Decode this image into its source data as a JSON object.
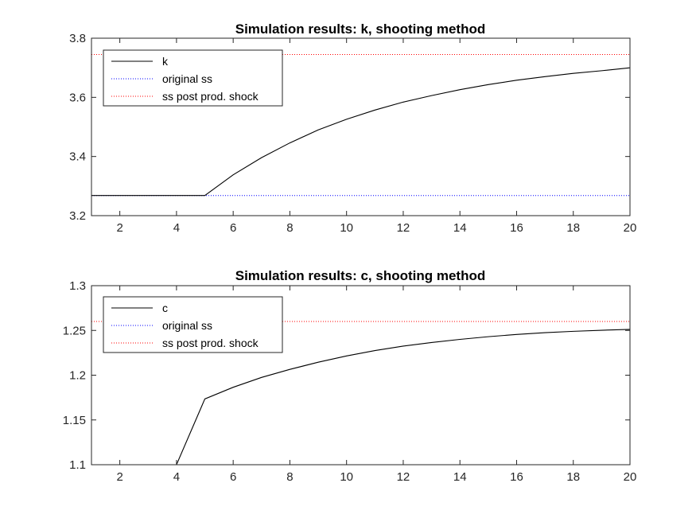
{
  "chart_data": [
    {
      "type": "line",
      "title": "Simulation results: k, shooting method",
      "xlabel": "",
      "ylabel": "",
      "xlim": [
        1,
        20
      ],
      "ylim": [
        3.2,
        3.8
      ],
      "xticks": [
        2,
        4,
        6,
        8,
        10,
        12,
        14,
        16,
        18,
        20
      ],
      "xtick_labels": [
        "2",
        "4",
        "6",
        "8",
        "10",
        "12",
        "14",
        "16",
        "18",
        "20"
      ],
      "yticks": [
        3.2,
        3.4,
        3.6,
        3.8
      ],
      "ytick_labels": [
        "3.2",
        "3.4",
        "3.6",
        "3.8"
      ],
      "grid": false,
      "legend_position": "top-left",
      "x": [
        1,
        2,
        3,
        4,
        5,
        6,
        7,
        8,
        9,
        10,
        11,
        12,
        13,
        14,
        15,
        16,
        17,
        18,
        19,
        20
      ],
      "series": [
        {
          "name": "k",
          "color": "#000000",
          "style": "solid",
          "values": [
            3.268,
            3.268,
            3.268,
            3.268,
            3.268,
            3.338,
            3.396,
            3.446,
            3.49,
            3.526,
            3.557,
            3.584,
            3.606,
            3.626,
            3.643,
            3.658,
            3.67,
            3.681,
            3.69,
            3.7
          ]
        },
        {
          "name": "original ss",
          "color": "#0000ff",
          "style": "dotted",
          "values": [
            3.268,
            3.268,
            3.268,
            3.268,
            3.268,
            3.268,
            3.268,
            3.268,
            3.268,
            3.268,
            3.268,
            3.268,
            3.268,
            3.268,
            3.268,
            3.268,
            3.268,
            3.268,
            3.268,
            3.268
          ]
        },
        {
          "name": "ss post prod. shock",
          "color": "#ff0000",
          "style": "dotted",
          "values": [
            3.745,
            3.745,
            3.745,
            3.745,
            3.745,
            3.745,
            3.745,
            3.745,
            3.745,
            3.745,
            3.745,
            3.745,
            3.745,
            3.745,
            3.745,
            3.745,
            3.745,
            3.745,
            3.745,
            3.745
          ]
        }
      ]
    },
    {
      "type": "line",
      "title": "Simulation results: c, shooting method",
      "xlabel": "",
      "ylabel": "",
      "xlim": [
        1,
        20
      ],
      "ylim": [
        1.1,
        1.3
      ],
      "xticks": [
        2,
        4,
        6,
        8,
        10,
        12,
        14,
        16,
        18,
        20
      ],
      "xtick_labels": [
        "2",
        "4",
        "6",
        "8",
        "10",
        "12",
        "14",
        "16",
        "18",
        "20"
      ],
      "yticks": [
        1.1,
        1.15,
        1.2,
        1.25,
        1.3
      ],
      "ytick_labels": [
        "1.1",
        "1.15",
        "1.2",
        "1.25",
        "1.3"
      ],
      "grid": false,
      "legend_position": "top-left",
      "x": [
        1,
        2,
        3,
        4,
        5,
        6,
        7,
        8,
        9,
        10,
        11,
        12,
        13,
        14,
        15,
        16,
        17,
        18,
        19,
        20
      ],
      "series": [
        {
          "name": "c",
          "color": "#000000",
          "style": "solid",
          "values": [
            1.1,
            1.1,
            1.1,
            1.1,
            1.1735,
            1.1865,
            1.1975,
            1.2065,
            1.2145,
            1.2215,
            1.2275,
            1.2325,
            1.2365,
            1.24,
            1.243,
            1.2455,
            1.2475,
            1.249,
            1.2502,
            1.2512
          ]
        },
        {
          "name": "original ss",
          "color": "#0000ff",
          "style": "dotted",
          "values": [
            1.1,
            1.1,
            1.1,
            1.1,
            1.1,
            1.1,
            1.1,
            1.1,
            1.1,
            1.1,
            1.1,
            1.1,
            1.1,
            1.1,
            1.1,
            1.1,
            1.1,
            1.1,
            1.1,
            1.1
          ]
        },
        {
          "name": "ss post prod. shock",
          "color": "#ff0000",
          "style": "dotted",
          "values": [
            1.26,
            1.26,
            1.26,
            1.26,
            1.26,
            1.26,
            1.26,
            1.26,
            1.26,
            1.26,
            1.26,
            1.26,
            1.26,
            1.26,
            1.26,
            1.26,
            1.26,
            1.26,
            1.26,
            1.26
          ]
        }
      ]
    }
  ]
}
